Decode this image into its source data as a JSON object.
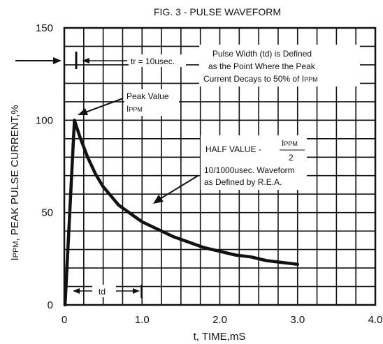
{
  "chart_data": {
    "type": "line",
    "title": "FIG. 3 - PULSE WAVEFORM",
    "xlabel": "t, TIME,mS",
    "ylabel_main": "I",
    "ylabel_sub": "PPM",
    "ylabel_rest": ", PEAK PULSE CURRENT,%",
    "xlim": [
      0,
      4.0
    ],
    "ylim": [
      0,
      150
    ],
    "x_ticks": [
      "0",
      "1.0",
      "2.0",
      "3.0",
      "4.0"
    ],
    "y_ticks": [
      "0",
      "50",
      "100",
      "150"
    ],
    "grid": true,
    "series": [
      {
        "x": [
          0.01,
          0.13,
          0.2,
          0.3,
          0.4,
          0.5,
          0.6,
          0.7,
          0.8,
          0.9,
          1.0,
          1.2,
          1.4,
          1.6,
          1.8,
          2.0,
          2.2,
          2.4,
          2.6,
          2.8,
          3.0
        ],
        "y": [
          0,
          100,
          91,
          80,
          71,
          64,
          59,
          54,
          51,
          48,
          45,
          41,
          37,
          34,
          31,
          29,
          27,
          26,
          24,
          23,
          22
        ]
      }
    ],
    "annotations": {
      "tr": "tr = 10usec.",
      "pulse_width": [
        "Pulse Width (td) is Defined",
        "as the Point Where the Peak",
        "Current Decays to 50% of I"
      ],
      "pulse_width_sub": "PPM",
      "peak_value": "Peak Value",
      "peak_ippm": "I",
      "peak_ippm_sub": "PPM",
      "half_value": "HALF VALUE - ",
      "frac_num": "I",
      "frac_num_sub": "PPM",
      "frac_den": "2",
      "waveform": [
        "10/1000usec. Waveform",
        "as Defined by R.E.A."
      ],
      "td": "td"
    }
  }
}
